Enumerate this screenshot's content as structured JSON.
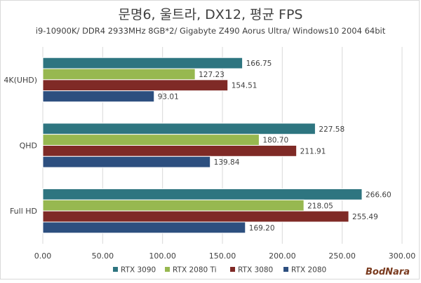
{
  "chart_data": {
    "type": "bar",
    "orientation": "horizontal",
    "title": "문명6, 울트라, DX12, 평균 FPS",
    "subtitle": "i9-10900K/ DDR4 2933MHz 8GB*2/ Gigabyte Z490 Aorus Ultra/ Windows10 2004 64bit",
    "categories": [
      "4K(UHD)",
      "QHD",
      "Full HD"
    ],
    "series": [
      {
        "name": "RTX 3090",
        "color": "#2e7580",
        "values": [
          166.75,
          227.58,
          266.6
        ]
      },
      {
        "name": "RTX 2080 Ti",
        "color": "#97b850",
        "values": [
          127.23,
          180.7,
          218.05
        ]
      },
      {
        "name": "RTX 3080",
        "color": "#7f2a26",
        "values": [
          154.51,
          211.91,
          255.49
        ]
      },
      {
        "name": "RTX 2080",
        "color": "#2d4f7f",
        "values": [
          93.01,
          139.84,
          169.2
        ]
      }
    ],
    "xlim": [
      0,
      300
    ],
    "xticks": [
      0,
      50,
      100,
      150,
      200,
      250,
      300
    ],
    "xtick_labels": [
      "0.00",
      "50.00",
      "100.00",
      "150.00",
      "200.00",
      "250.00",
      "300.00"
    ],
    "grid": true,
    "legend_position": "bottom"
  },
  "watermark": "BodNara"
}
